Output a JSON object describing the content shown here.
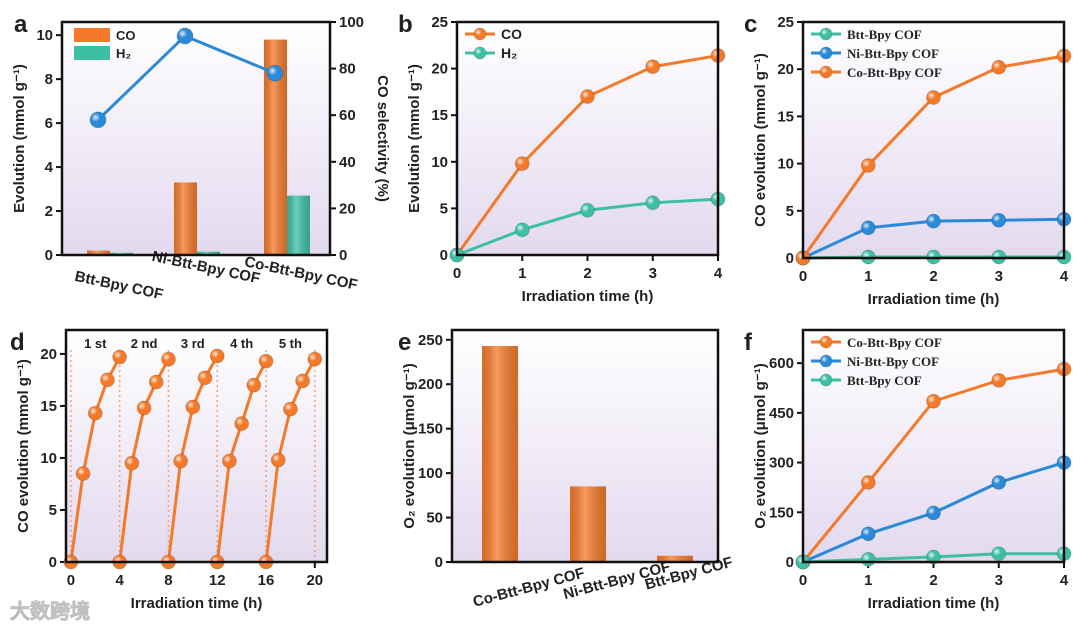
{
  "watermark": "大数跨境",
  "chart_data": [
    {
      "panel": "a",
      "type": "bar",
      "categories": [
        "Btt-Bpy COF",
        "Ni-Btt-Bpy COF",
        "Co-Btt-Bpy COF"
      ],
      "series": [
        {
          "name": "CO",
          "values": [
            0.2,
            3.3,
            9.8
          ],
          "color": "#f47a2a"
        },
        {
          "name": "H₂",
          "values": [
            0.1,
            0.15,
            2.7
          ],
          "color": "#3dbfa6"
        }
      ],
      "line_series": {
        "name": "CO selectivity",
        "values": [
          58,
          94,
          78
        ],
        "color": "#2a8ad8",
        "axis": "right"
      },
      "ylabel": "Evolution (mmol g⁻¹)",
      "y2label": "CO selectivity (%)",
      "ylim": [
        0,
        10.6
      ],
      "y2lim": [
        0,
        100
      ],
      "yticks": [
        0,
        2,
        4,
        6,
        8,
        10
      ],
      "y2ticks": [
        0,
        20,
        40,
        60,
        80,
        100
      ],
      "legend": "top-left"
    },
    {
      "panel": "b",
      "type": "line",
      "x": [
        0,
        1,
        2,
        3,
        4
      ],
      "series": [
        {
          "name": "CO",
          "values": [
            0,
            9.8,
            17.0,
            20.2,
            21.4
          ],
          "color": "#f47a2a"
        },
        {
          "name": "H₂",
          "values": [
            0,
            2.7,
            4.8,
            5.6,
            6.0
          ],
          "color": "#3dbfa6"
        }
      ],
      "xlabel": "Irradiation time (h)",
      "ylabel": "Evolution (mmol g⁻¹)",
      "xlim": [
        0,
        4
      ],
      "ylim": [
        0,
        25
      ],
      "xticks": [
        0,
        1,
        2,
        3,
        4
      ],
      "yticks": [
        0,
        5,
        10,
        15,
        20,
        25
      ],
      "legend": "top-left"
    },
    {
      "panel": "c",
      "type": "line",
      "x": [
        0,
        1,
        2,
        3,
        4
      ],
      "series": [
        {
          "name": "Btt-Bpy COF",
          "values": [
            0,
            0.1,
            0.1,
            0.1,
            0.1
          ],
          "color": "#3dbfa6"
        },
        {
          "name": "Ni-Btt-Bpy COF",
          "values": [
            0,
            3.2,
            3.9,
            4.0,
            4.1
          ],
          "color": "#2a8ad8"
        },
        {
          "name": "Co-Btt-Bpy COF",
          "values": [
            0,
            9.8,
            17.0,
            20.2,
            21.4
          ],
          "color": "#f47a2a"
        }
      ],
      "xlabel": "Irradiation time (h)",
      "ylabel": "CO evolution (mmol g⁻¹)",
      "xlim": [
        0,
        4
      ],
      "ylim": [
        0,
        25
      ],
      "xticks": [
        0,
        1,
        2,
        3,
        4
      ],
      "yticks": [
        0,
        5,
        10,
        15,
        20,
        25
      ],
      "legend": "top-left"
    },
    {
      "panel": "d",
      "type": "line",
      "cycle_labels": [
        "1 st",
        "2 nd",
        "3 rd",
        "4 th",
        "5 th"
      ],
      "series": [
        {
          "name": "1 st",
          "x": [
            0,
            1,
            2,
            3,
            4
          ],
          "values": [
            0,
            8.5,
            14.3,
            17.5,
            19.7
          ],
          "color": "#f47a2a"
        },
        {
          "name": "2 nd",
          "x": [
            4,
            5,
            6,
            7,
            8
          ],
          "values": [
            0,
            9.5,
            14.8,
            17.3,
            19.5
          ],
          "color": "#f47a2a"
        },
        {
          "name": "3 rd",
          "x": [
            8,
            9,
            10,
            11,
            12
          ],
          "values": [
            0,
            9.7,
            14.9,
            17.7,
            19.8
          ],
          "color": "#f47a2a"
        },
        {
          "name": "4 th",
          "x": [
            12,
            13,
            14,
            15,
            16
          ],
          "values": [
            0,
            9.7,
            13.3,
            17.0,
            19.3
          ],
          "color": "#f47a2a"
        },
        {
          "name": "5 th",
          "x": [
            16,
            17,
            18,
            19,
            20
          ],
          "values": [
            0,
            9.8,
            14.7,
            17.4,
            19.5
          ],
          "color": "#f47a2a"
        }
      ],
      "xlabel": "Irradiation time (h)",
      "ylabel": "CO evolution (mmol g⁻¹)",
      "xlim": [
        -0.4,
        21
      ],
      "ylim": [
        0,
        22.3
      ],
      "xticks": [
        0,
        4,
        8,
        12,
        16,
        20
      ],
      "yticks": [
        0,
        5,
        10,
        15,
        20
      ]
    },
    {
      "panel": "e",
      "type": "bar",
      "categories": [
        "Co-Btt-Bpy COF",
        "Ni-Btt-Bpy COF",
        "Btt-Bpy COF"
      ],
      "series": [
        {
          "name": "O₂",
          "values": [
            243,
            85,
            7
          ],
          "color": "#f47a2a"
        }
      ],
      "ylabel": "O₂ evolution (μmol g⁻¹)",
      "ylim": [
        0,
        261
      ],
      "yticks": [
        0,
        50,
        100,
        150,
        200,
        250
      ]
    },
    {
      "panel": "f",
      "type": "line",
      "x": [
        0,
        1,
        2,
        3,
        4
      ],
      "series": [
        {
          "name": "Co-Btt-Bpy COF",
          "values": [
            0,
            240,
            485,
            548,
            582
          ],
          "color": "#f47a2a"
        },
        {
          "name": "Ni-Btt-Bpy COF",
          "values": [
            0,
            85,
            148,
            240,
            300
          ],
          "color": "#2a8ad8"
        },
        {
          "name": "Btt-Bpy COF",
          "values": [
            0,
            8,
            15,
            25,
            25
          ],
          "color": "#3dbfa6"
        }
      ],
      "xlabel": "Irradiation time (h)",
      "ylabel": "O₂ evolution (μmol g⁻¹)",
      "xlim": [
        0,
        4
      ],
      "ylim": [
        0,
        700
      ],
      "xticks": [
        0,
        1,
        2,
        3,
        4
      ],
      "yticks": [
        0,
        150,
        300,
        450,
        600
      ],
      "legend": "top-left"
    }
  ]
}
